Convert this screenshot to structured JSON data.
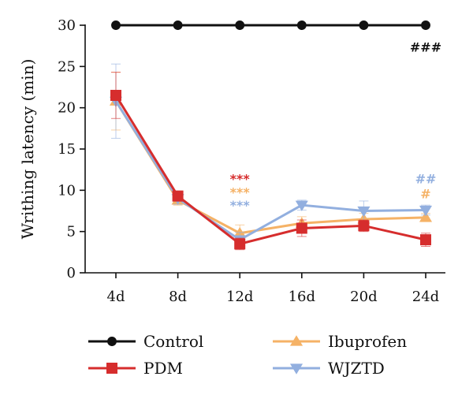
{
  "chart_data": {
    "type": "line",
    "ylabel": "Writhing latency (min)",
    "xlabel": "",
    "categories": [
      "4d",
      "8d",
      "12d",
      "16d",
      "20d",
      "24d"
    ],
    "ylim": [
      0,
      30
    ],
    "yticks": [
      0,
      5,
      10,
      15,
      20,
      25,
      30
    ],
    "grid": false,
    "legend_position": "bottom",
    "series": [
      {
        "name": "Control",
        "color": "#111111",
        "marker": "circle",
        "values": [
          30,
          30,
          30,
          30,
          30,
          30
        ],
        "errors": [
          0,
          0,
          0,
          0,
          0,
          0
        ]
      },
      {
        "name": "PDM",
        "color": "#d62d2d",
        "marker": "square",
        "values": [
          21.5,
          9.3,
          3.5,
          5.4,
          5.7,
          4.0
        ],
        "errors": [
          2.8,
          0.6,
          0.7,
          1.0,
          0.7,
          0.8
        ]
      },
      {
        "name": "Ibuprofen",
        "color": "#f5b266",
        "marker": "triangle-up",
        "values": [
          20.8,
          8.8,
          4.8,
          6.0,
          6.5,
          6.7
        ],
        "errors": [
          3.5,
          0.6,
          1.0,
          0.8,
          0.7,
          0.5
        ]
      },
      {
        "name": "WJZTD",
        "color": "#92afdf",
        "marker": "triangle-down",
        "values": [
          20.8,
          9.0,
          4.0,
          8.2,
          7.5,
          7.6
        ],
        "errors": [
          4.5,
          0.7,
          0.9,
          0.6,
          1.2,
          0.6
        ]
      }
    ],
    "annotations": [
      {
        "text": "###",
        "category": "24d",
        "y": 27.3,
        "color": "#111111"
      },
      {
        "text": "***",
        "category": "12d",
        "y": 11.3,
        "color": "#d62d2d"
      },
      {
        "text": "***",
        "category": "12d",
        "y": 9.7,
        "color": "#f5b266"
      },
      {
        "text": "***",
        "category": "12d",
        "y": 8.1,
        "color": "#92afdf"
      },
      {
        "text": "##",
        "category": "24d",
        "y": 11.3,
        "color": "#92afdf"
      },
      {
        "text": "#",
        "category": "24d",
        "y": 9.5,
        "color": "#f5b266"
      }
    ]
  }
}
